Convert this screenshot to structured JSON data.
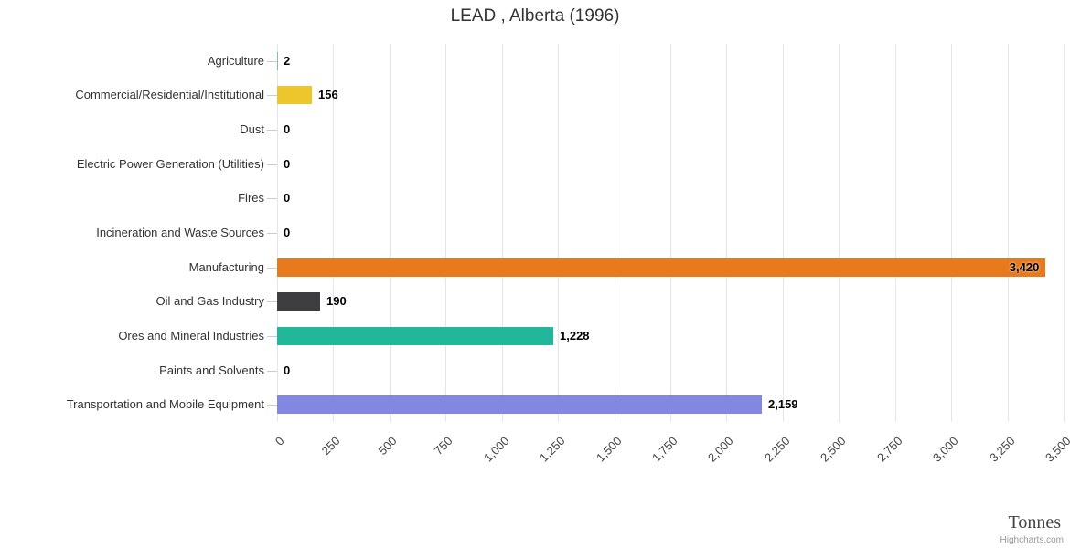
{
  "chart_data": {
    "type": "bar",
    "orientation": "horizontal",
    "title": "LEAD , Alberta (1996)",
    "xlabel": "Tonnes",
    "ylabel": "",
    "credit": "Highcharts.com",
    "categories": [
      "Agriculture",
      "Commercial/Residential/Institutional",
      "Dust",
      "Electric Power Generation (Utilities)",
      "Fires",
      "Incineration and Waste Sources",
      "Manufacturing",
      "Oil and Gas Industry",
      "Ores and Mineral Industries",
      "Paints and Solvents",
      "Transportation and Mobile Equipment"
    ],
    "values": [
      2,
      156,
      0,
      0,
      0,
      0,
      3420,
      190,
      1228,
      0,
      2159
    ],
    "value_labels": [
      "2",
      "156",
      "0",
      "0",
      "0",
      "0",
      "3,420",
      "190",
      "1,228",
      "0",
      "2,159"
    ],
    "bar_colors": [
      "#7cb5ec",
      "#edc62e",
      "#7cb5ec",
      "#7cb5ec",
      "#7cb5ec",
      "#7cb5ec",
      "#e87a1e",
      "#3e3e40",
      "#21b79a",
      "#7cb5ec",
      "#8288e2"
    ],
    "xlim": [
      0,
      3500
    ],
    "x_tick_values": [
      0,
      250,
      500,
      750,
      1000,
      1250,
      1500,
      1750,
      2000,
      2250,
      2500,
      2750,
      3000,
      3250,
      3500
    ],
    "x_tick_labels": [
      "0",
      "250",
      "500",
      "750",
      "1,000",
      "1,250",
      "1,500",
      "1,750",
      "2,000",
      "2,250",
      "2,500",
      "2,750",
      "3,000",
      "3,250",
      "3,500"
    ],
    "grid": true,
    "legend_position": "none",
    "colors": {
      "grid": "#e6e6e6",
      "tick": "#cccccc",
      "category_label": "#333333",
      "tick_label": "#444444",
      "value_label": "#000000",
      "title": "#333333",
      "axis_title": "#444444",
      "credit": "#999999",
      "background": "#ffffff"
    }
  }
}
